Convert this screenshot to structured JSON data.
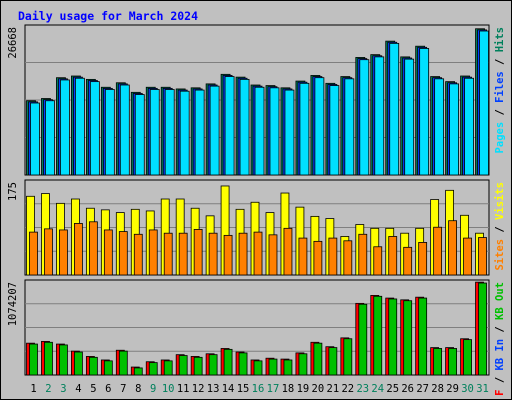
{
  "title": "Daily usage for March 2024",
  "colors": {
    "outer": "#c0c0c0",
    "border": "#808080",
    "frame": "#000000",
    "panel_bg": "#c0c0c0",
    "gridline": "#7f7f7f",
    "title": "#0000ff",
    "weekday_label": "#000000",
    "weekend_label": "#00805c",
    "hits": "#00805c",
    "files": "#0040ff",
    "pages": "#00e0ff",
    "visits": "#ffff00",
    "sites": "#ff8000",
    "kb_in": "#00c000",
    "kb_out": "#ff0000"
  },
  "chart_data": [
    {
      "type": "bar",
      "panel": "top",
      "ymax_label": "26668",
      "ylim": [
        0,
        26668
      ],
      "legend": [
        {
          "text": "Pages",
          "color_key": "pages"
        },
        {
          "text": " / ",
          "color_key": "weekday_label"
        },
        {
          "text": "Files",
          "color_key": "files"
        },
        {
          "text": " / ",
          "color_key": "weekday_label"
        },
        {
          "text": "Hits",
          "color_key": "hits"
        }
      ],
      "categories": [
        "1",
        "2",
        "3",
        "4",
        "5",
        "6",
        "7",
        "8",
        "9",
        "10",
        "11",
        "12",
        "13",
        "14",
        "15",
        "16",
        "17",
        "18",
        "19",
        "20",
        "21",
        "22",
        "23",
        "24",
        "25",
        "26",
        "27",
        "28",
        "29",
        "30",
        "31"
      ],
      "series": [
        {
          "name": "Hits",
          "color_key": "hits",
          "values": [
            13200,
            13600,
            17300,
            17600,
            17000,
            15600,
            16400,
            14700,
            15600,
            15600,
            15300,
            15500,
            16200,
            17900,
            17400,
            16000,
            15900,
            15500,
            16700,
            17700,
            16300,
            17500,
            20900,
            21400,
            23800,
            21000,
            22900,
            17500,
            16600,
            17600,
            26000
          ]
        },
        {
          "name": "Files",
          "color_key": "files",
          "values": [
            13000,
            13400,
            17100,
            17400,
            16800,
            15400,
            16200,
            14500,
            15400,
            15400,
            15100,
            15300,
            16000,
            17700,
            17200,
            15800,
            15700,
            15300,
            16500,
            17500,
            16100,
            17300,
            20700,
            21200,
            23600,
            20800,
            22700,
            17300,
            16400,
            17400,
            25800
          ]
        },
        {
          "name": "Pages",
          "color_key": "pages",
          "values": [
            12800,
            13200,
            16900,
            17200,
            16600,
            15200,
            16000,
            14300,
            15200,
            15200,
            14900,
            15100,
            15800,
            17500,
            17000,
            15600,
            15500,
            15100,
            16300,
            17300,
            15900,
            17100,
            20500,
            21000,
            23400,
            20600,
            22500,
            17100,
            16200,
            17200,
            25600
          ]
        }
      ]
    },
    {
      "type": "bar",
      "panel": "middle",
      "ymax_label": "175",
      "ylim": [
        0,
        175
      ],
      "legend": [
        {
          "text": "Sites",
          "color_key": "sites"
        },
        {
          "text": " / ",
          "color_key": "weekday_label"
        },
        {
          "text": "Visits",
          "color_key": "visits"
        }
      ],
      "categories": [
        "1",
        "2",
        "3",
        "4",
        "5",
        "6",
        "7",
        "8",
        "9",
        "10",
        "11",
        "12",
        "13",
        "14",
        "15",
        "16",
        "17",
        "18",
        "19",
        "20",
        "21",
        "22",
        "23",
        "24",
        "25",
        "26",
        "27",
        "28",
        "29",
        "30",
        "31"
      ],
      "series": [
        {
          "name": "Visits",
          "color_key": "visits",
          "values": [
            145,
            150,
            132,
            140,
            123,
            120,
            115,
            121,
            118,
            140,
            140,
            123,
            109,
            164,
            121,
            134,
            115,
            151,
            125,
            108,
            104,
            71,
            93,
            86,
            86,
            77,
            86,
            139,
            156,
            110,
            77
          ]
        },
        {
          "name": "Sites",
          "color_key": "sites",
          "values": [
            79,
            85,
            83,
            95,
            98,
            83,
            80,
            75,
            83,
            77,
            77,
            84,
            77,
            73,
            77,
            79,
            74,
            86,
            68,
            62,
            68,
            63,
            75,
            52,
            71,
            51,
            60,
            88,
            100,
            68,
            69
          ]
        }
      ]
    },
    {
      "type": "bar",
      "panel": "bottom",
      "ymax_label": "1074207",
      "ylim": [
        0,
        1074207
      ],
      "legend": [
        {
          "text": "KB F",
          "color_key": "kb_out"
        },
        {
          "text": " / ",
          "color_key": "weekday_label"
        },
        {
          "text": "KB In",
          "color_key": "files"
        },
        {
          "text": " / ",
          "color_key": "weekday_label"
        },
        {
          "text": "KB Out",
          "color_key": "kb_in"
        }
      ],
      "categories": [
        "1",
        "2",
        "3",
        "4",
        "5",
        "6",
        "7",
        "8",
        "9",
        "10",
        "11",
        "12",
        "13",
        "14",
        "15",
        "16",
        "17",
        "18",
        "19",
        "20",
        "21",
        "22",
        "23",
        "24",
        "25",
        "26",
        "27",
        "28",
        "29",
        "30",
        "31"
      ],
      "series": [
        {
          "name": "KB F",
          "color_key": "kb_out",
          "values": [
            360000,
            380000,
            350000,
            270000,
            210000,
            170000,
            280000,
            90000,
            150000,
            170000,
            230000,
            210000,
            240000,
            300000,
            260000,
            170000,
            190000,
            180000,
            250000,
            370000,
            320000,
            420000,
            810000,
            900000,
            870000,
            850000,
            880000,
            310000,
            310000,
            410000,
            1050000
          ]
        },
        {
          "name": "KB Out",
          "color_key": "kb_in",
          "values": [
            350000,
            370000,
            340000,
            260000,
            200000,
            160000,
            270000,
            80000,
            140000,
            160000,
            220000,
            200000,
            230000,
            290000,
            250000,
            160000,
            180000,
            170000,
            240000,
            360000,
            310000,
            410000,
            800000,
            890000,
            860000,
            840000,
            870000,
            300000,
            300000,
            400000,
            1040000
          ]
        }
      ]
    }
  ]
}
